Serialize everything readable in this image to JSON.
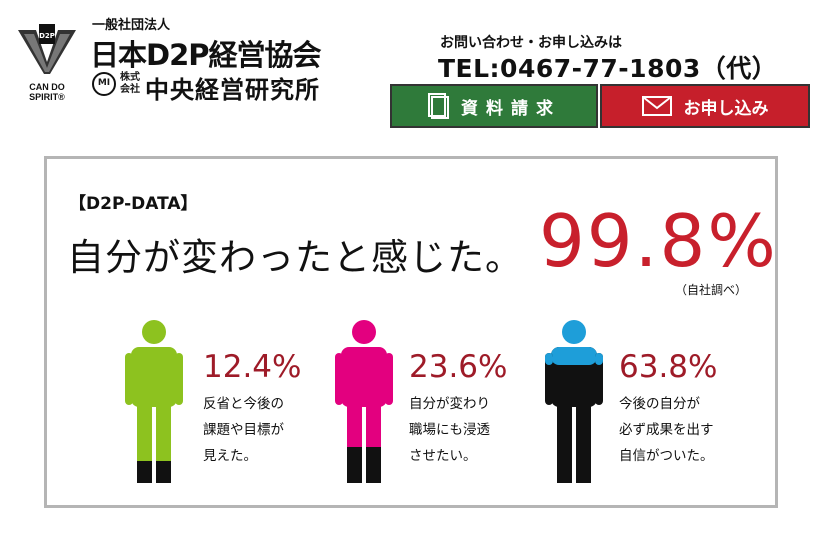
{
  "header": {
    "logo": {
      "mark_text": "D2P",
      "tagline_line1": "CAN DO",
      "tagline_line2": "SPIRIT®"
    },
    "org_type": "一般社団法人",
    "org_name": "日本D2P経営協会",
    "sub_logo_text": "MI",
    "sub_kabushiki": "株式会社",
    "sub_org_name": "中央経営研究所",
    "contact_label": "お問い合わせ・お申し込みは",
    "tel": "TEL:0467-77-1803（代）",
    "buttons": {
      "document_request": {
        "label": "資料請求",
        "icon": "document-icon",
        "color": "#2f7a3a"
      },
      "apply": {
        "label": "お申し込み",
        "icon": "mail-icon",
        "color": "#c61f2b"
      }
    }
  },
  "panel": {
    "tag": "【D2P-DATA】",
    "headline": "自分が変わったと感じた。",
    "headline_percent": "99.8%",
    "note": "（自社調べ）",
    "accent_color": "#c8202c",
    "stats": [
      {
        "percent_label": "12.4%",
        "value": 12.4,
        "line1": "反省と今後の",
        "line2": "課題や目標が",
        "line3": "見えた。",
        "color": "#8dc21f",
        "fill_region": "legs"
      },
      {
        "percent_label": "23.6%",
        "value": 23.6,
        "line1": "自分が変わり",
        "line2": "職場にも浸透",
        "line3": "させたい。",
        "color": "#e3007f",
        "fill_region": "lower-legs"
      },
      {
        "percent_label": "63.8%",
        "value": 63.8,
        "line1": "今後の自分が",
        "line2": "必ず成果を出す",
        "line3": "自信がついた。",
        "color": "#1e9ed9",
        "fill_region": "head-shoulders"
      }
    ]
  }
}
